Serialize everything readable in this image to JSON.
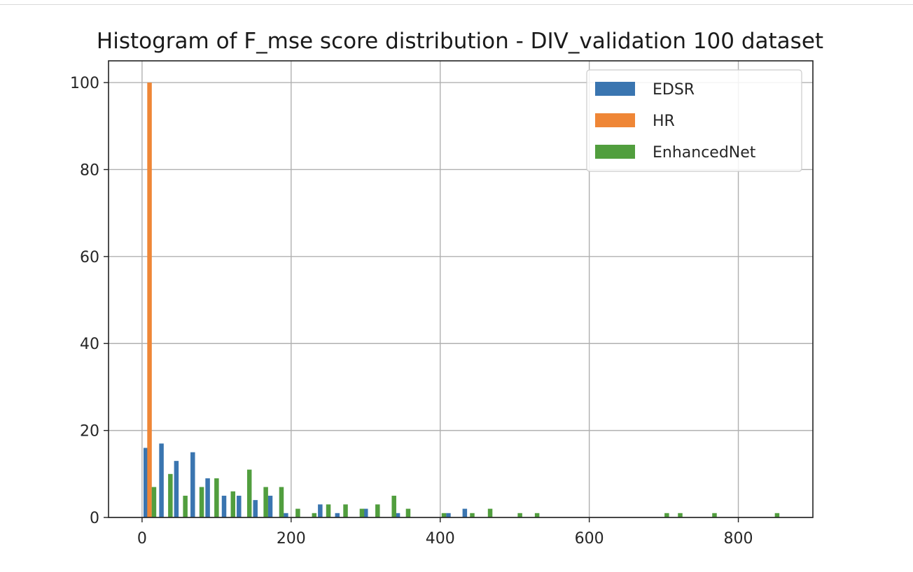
{
  "chart_data": {
    "type": "bar",
    "title": "Histogram of F_mse score distribution - DIV_validation 100 dataset",
    "xlabel": "",
    "ylabel": "",
    "xlim": [
      -45,
      900
    ],
    "ylim": [
      0,
      105
    ],
    "xticks": [
      0,
      200,
      400,
      600,
      800
    ],
    "yticks": [
      0,
      20,
      40,
      60,
      80,
      100
    ],
    "grid": true,
    "legend_position": "top-right",
    "series": [
      {
        "name": "EDSR",
        "color": "#3a75b0",
        "points": [
          {
            "x": 5,
            "y": 16
          },
          {
            "x": 26,
            "y": 17
          },
          {
            "x": 46,
            "y": 13
          },
          {
            "x": 68,
            "y": 15
          },
          {
            "x": 88,
            "y": 9
          },
          {
            "x": 110,
            "y": 5
          },
          {
            "x": 130,
            "y": 5
          },
          {
            "x": 152,
            "y": 4
          },
          {
            "x": 172,
            "y": 5
          },
          {
            "x": 193,
            "y": 1
          },
          {
            "x": 239,
            "y": 3
          },
          {
            "x": 262,
            "y": 1
          },
          {
            "x": 300,
            "y": 2
          },
          {
            "x": 343,
            "y": 1
          },
          {
            "x": 411,
            "y": 1
          },
          {
            "x": 433,
            "y": 2
          }
        ]
      },
      {
        "name": "HR",
        "color": "#ef8636",
        "points": [
          {
            "x": 10,
            "y": 100
          }
        ]
      },
      {
        "name": "EnhancedNet",
        "color": "#519e3e",
        "points": [
          {
            "x": 16,
            "y": 7
          },
          {
            "x": 38,
            "y": 10
          },
          {
            "x": 58,
            "y": 5
          },
          {
            "x": 80,
            "y": 7
          },
          {
            "x": 100,
            "y": 9
          },
          {
            "x": 122,
            "y": 6
          },
          {
            "x": 144,
            "y": 11
          },
          {
            "x": 166,
            "y": 7
          },
          {
            "x": 187,
            "y": 7
          },
          {
            "x": 209,
            "y": 2
          },
          {
            "x": 231,
            "y": 1
          },
          {
            "x": 250,
            "y": 3
          },
          {
            "x": 273,
            "y": 3
          },
          {
            "x": 295,
            "y": 2
          },
          {
            "x": 316,
            "y": 3
          },
          {
            "x": 338,
            "y": 5
          },
          {
            "x": 357,
            "y": 2
          },
          {
            "x": 405,
            "y": 1
          },
          {
            "x": 443,
            "y": 1
          },
          {
            "x": 467,
            "y": 2
          },
          {
            "x": 507,
            "y": 1
          },
          {
            "x": 530,
            "y": 1
          },
          {
            "x": 704,
            "y": 1
          },
          {
            "x": 722,
            "y": 1
          },
          {
            "x": 768,
            "y": 1
          },
          {
            "x": 852,
            "y": 1
          }
        ]
      }
    ]
  }
}
